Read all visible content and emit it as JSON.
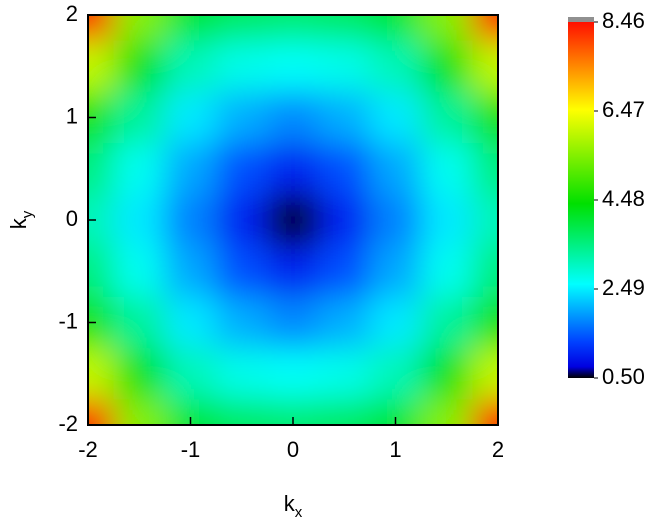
{
  "chart_data": {
    "type": "heatmap",
    "xlabel": "k",
    "xlabel_sub": "x",
    "ylabel": "k",
    "ylabel_sub": "y",
    "x": [
      -2,
      -1.5,
      -1,
      -0.5,
      0,
      0.5,
      1,
      1.5,
      2
    ],
    "y": [
      2,
      1.5,
      1,
      0.5,
      0,
      -0.5,
      -1,
      -1.5,
      -2
    ],
    "z": [
      [
        8.46,
        5.5,
        4.0,
        3.7,
        3.6,
        3.7,
        4.0,
        5.5,
        8.46
      ],
      [
        6.0,
        4.3,
        3.1,
        2.75,
        2.65,
        2.75,
        3.1,
        4.3,
        6.0
      ],
      [
        4.6,
        3.3,
        2.45,
        2.05,
        1.8,
        2.05,
        2.45,
        3.3,
        4.6
      ],
      [
        3.5,
        2.7,
        2.0,
        1.4,
        1.05,
        1.4,
        2.0,
        2.7,
        3.5
      ],
      [
        3.1,
        2.45,
        1.75,
        1.05,
        0.5,
        1.05,
        1.75,
        2.45,
        3.1
      ],
      [
        3.5,
        2.7,
        2.0,
        1.4,
        1.05,
        1.4,
        2.0,
        2.7,
        3.5
      ],
      [
        4.6,
        3.3,
        2.45,
        2.05,
        1.8,
        2.05,
        2.45,
        3.3,
        4.6
      ],
      [
        6.0,
        4.3,
        3.1,
        2.75,
        2.65,
        2.75,
        3.1,
        4.3,
        6.0
      ],
      [
        8.46,
        5.5,
        4.0,
        3.7,
        3.6,
        3.7,
        4.0,
        5.5,
        8.46
      ]
    ],
    "xlim": [
      -2,
      2
    ],
    "ylim": [
      -2,
      2
    ],
    "xticks": [
      -2,
      -1,
      0,
      1,
      2
    ],
    "yticks": [
      -2,
      -1,
      0,
      1,
      2
    ],
    "zlim": [
      0.5,
      8.46
    ],
    "zticks": [
      {
        "value": 0.5,
        "label": "0.50"
      },
      {
        "value": 2.49,
        "label": "2.49"
      },
      {
        "value": 4.48,
        "label": "4.48"
      },
      {
        "value": 6.47,
        "label": "6.47"
      },
      {
        "value": 8.46,
        "label": "8.46"
      }
    ],
    "colorscale": [
      {
        "value": 0.5,
        "color": "#000000"
      },
      {
        "value": 0.75,
        "color": "#0000e0"
      },
      {
        "value": 1.3,
        "color": "#0040ff"
      },
      {
        "value": 2.6,
        "color": "#00ffff"
      },
      {
        "value": 4.4,
        "color": "#00e000"
      },
      {
        "value": 6.5,
        "color": "#ffff00"
      },
      {
        "value": 8.46,
        "color": "#ff1000"
      }
    ]
  }
}
